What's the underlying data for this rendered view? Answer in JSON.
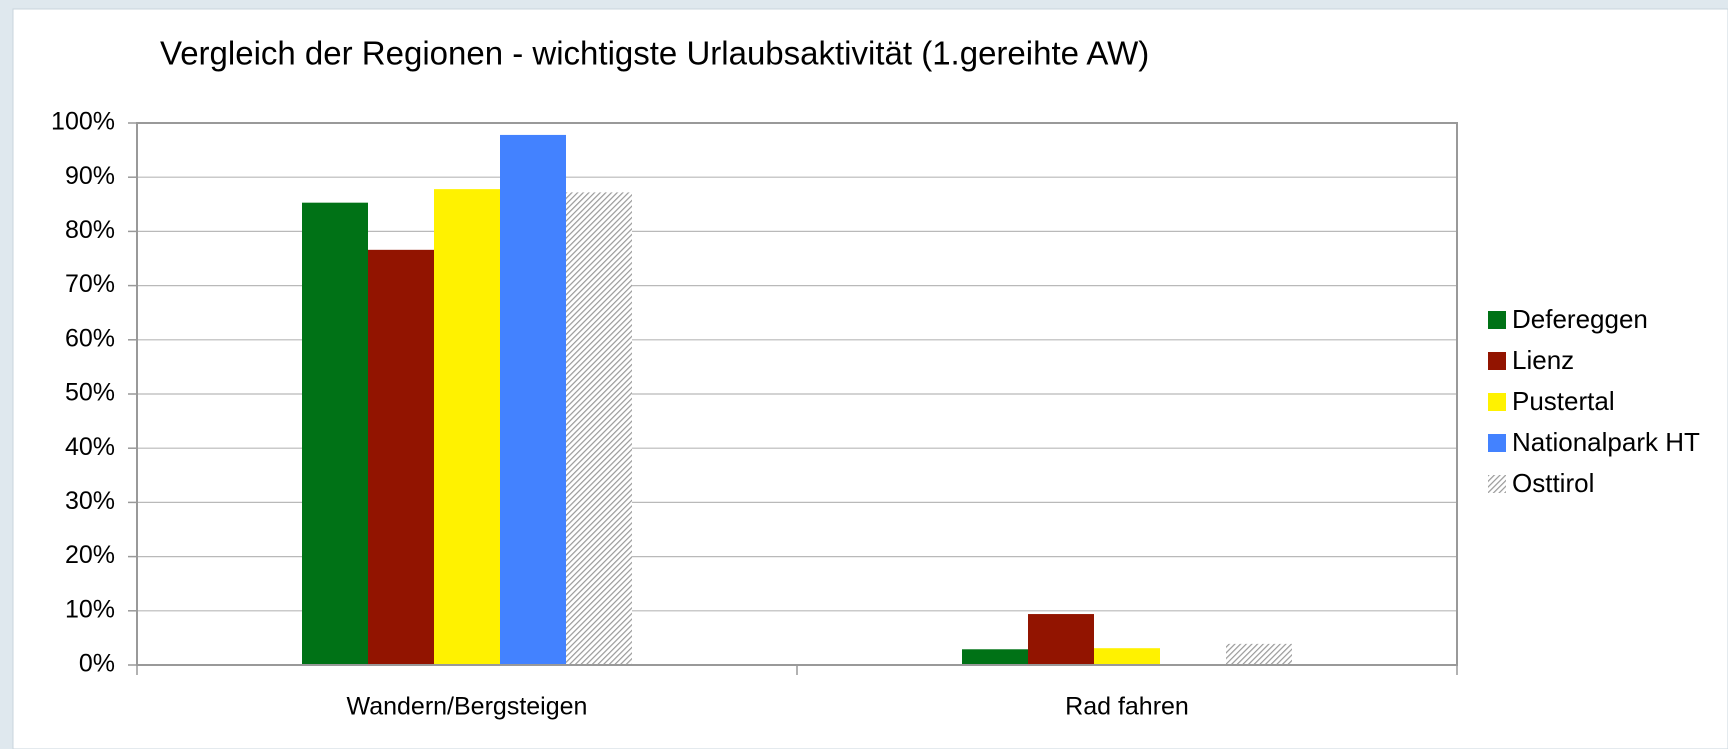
{
  "chart_data": {
    "type": "bar",
    "title": "Vergleich der Regionen - wichtigste Urlaubsaktivität (1.gereihte AW)",
    "categories": [
      "Wandern/Bergsteigen",
      "Rad fahren"
    ],
    "series": [
      {
        "name": "Defereggen",
        "color": "#007216",
        "values": [
          85.3,
          2.9
        ]
      },
      {
        "name": "Lienz",
        "color": "#921400",
        "values": [
          76.6,
          9.4
        ]
      },
      {
        "name": "Pustertal",
        "color": "#fff200",
        "values": [
          87.8,
          3.1
        ]
      },
      {
        "name": "Nationalpark HT",
        "color": "#4382ff",
        "values": [
          97.8,
          0
        ]
      },
      {
        "name": "Osttirol",
        "color": "#999999",
        "values": [
          87.2,
          3.9
        ]
      }
    ],
    "ylim": [
      0,
      100
    ],
    "yticks": [
      {
        "value": 0,
        "label": "0%"
      },
      {
        "value": 10,
        "label": "10%"
      },
      {
        "value": 20,
        "label": "20%"
      },
      {
        "value": 30,
        "label": "30%"
      },
      {
        "value": 40,
        "label": "40%"
      },
      {
        "value": 50,
        "label": "50%"
      },
      {
        "value": 60,
        "label": "60%"
      },
      {
        "value": 70,
        "label": "70%"
      },
      {
        "value": 80,
        "label": "80%"
      },
      {
        "value": 90,
        "label": "90%"
      },
      {
        "value": 100,
        "label": "100%"
      }
    ],
    "grid": true,
    "legend": "right"
  }
}
